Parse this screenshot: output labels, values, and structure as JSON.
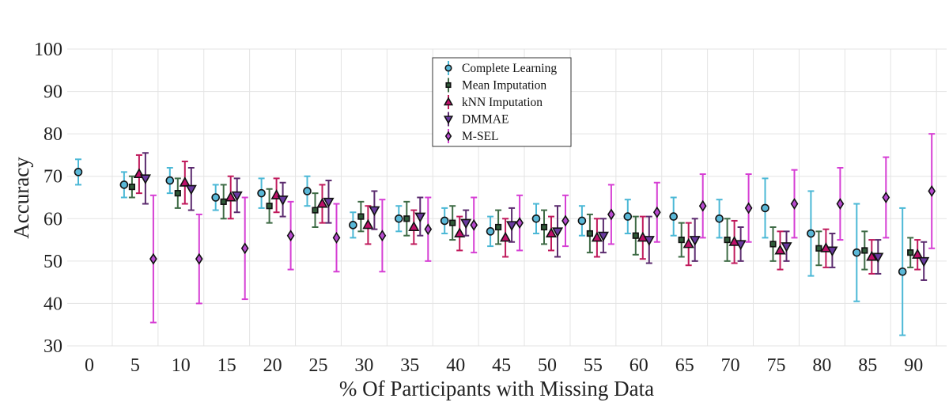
{
  "chart_data": {
    "type": "scatter",
    "title": "",
    "xlabel": "% Of Participants with Missing Data",
    "ylabel": "Accuracy",
    "ylim": [
      30,
      100
    ],
    "yticks": [
      "30",
      "40",
      "50",
      "60",
      "70",
      "80",
      "90",
      "100"
    ],
    "categories": [
      "0",
      "5",
      "10",
      "15",
      "20",
      "25",
      "30",
      "35",
      "40",
      "45",
      "50",
      "55",
      "60",
      "65",
      "70",
      "75",
      "80",
      "85",
      "90"
    ],
    "grid": true,
    "legend_position": "top-center",
    "series": [
      {
        "name": "Complete Learning",
        "marker": "circle",
        "color": "#4bb8d6",
        "marker_fill": "#5ab8d8",
        "values": [
          71,
          68,
          69,
          65,
          66,
          66.5,
          58.5,
          60,
          59.5,
          57,
          60,
          59.5,
          60.5,
          60.5,
          60,
          62.5,
          56.5,
          52,
          47.5
        ],
        "err": [
          3,
          3,
          3,
          3,
          3.5,
          3.5,
          3,
          3,
          3,
          3.5,
          3.5,
          3.5,
          4,
          4.5,
          4.5,
          7,
          10,
          11.5,
          15
        ]
      },
      {
        "name": "Mean Imputation",
        "marker": "square",
        "color": "#3e6b45",
        "marker_fill": "#2f5a38",
        "values": [
          null,
          67.5,
          66,
          64,
          63,
          62,
          60.5,
          60,
          59,
          58,
          58,
          56.5,
          56,
          55,
          55,
          54,
          53,
          52.5,
          52
        ],
        "err": [
          null,
          2.5,
          3.5,
          4,
          4,
          4,
          3.5,
          4,
          4,
          4,
          4,
          4.5,
          4.5,
          4,
          5,
          4,
          4,
          4.5,
          3.5
        ]
      },
      {
        "name": "kNN Imputation",
        "marker": "triangle-up",
        "color": "#c01a5c",
        "marker_fill": "#c0106a",
        "values": [
          null,
          70.5,
          68.5,
          65,
          65.5,
          63.5,
          58.5,
          58,
          56.5,
          55.5,
          56.5,
          55.5,
          55.5,
          54,
          54.5,
          52.5,
          53,
          51,
          51.5
        ],
        "err": [
          null,
          4.5,
          5,
          5,
          4,
          4.5,
          4.5,
          4,
          4,
          4.5,
          4,
          4.5,
          5,
          5,
          5,
          4.5,
          4.5,
          4,
          3.5
        ]
      },
      {
        "name": "DMMAE",
        "marker": "triangle-down",
        "color": "#5b2a6e",
        "marker_fill": "#6a3aa0",
        "values": [
          null,
          69.5,
          67,
          65.5,
          64.5,
          64,
          62,
          60.5,
          59,
          58.5,
          57,
          56,
          55,
          55,
          54,
          53.5,
          52.5,
          51,
          50
        ],
        "err": [
          null,
          6,
          5,
          4,
          4,
          5,
          4.5,
          4.5,
          3,
          4,
          6,
          4,
          5.5,
          5,
          4,
          3.5,
          4,
          4,
          4.5
        ]
      },
      {
        "name": "M-SEL",
        "marker": "diamond",
        "color": "#d63fd4",
        "marker_fill": "#b84ad0",
        "values": [
          null,
          50.5,
          50.5,
          53,
          56,
          55.5,
          56,
          57.5,
          58.5,
          59,
          59.5,
          61,
          61.5,
          63,
          62.5,
          63.5,
          63.5,
          65,
          66.5
        ],
        "err": [
          null,
          15,
          10.5,
          12,
          8,
          8,
          8.5,
          7.5,
          6.5,
          6.5,
          6,
          7,
          7,
          7.5,
          8,
          8,
          8.5,
          9.5,
          13.5
        ]
      }
    ]
  }
}
